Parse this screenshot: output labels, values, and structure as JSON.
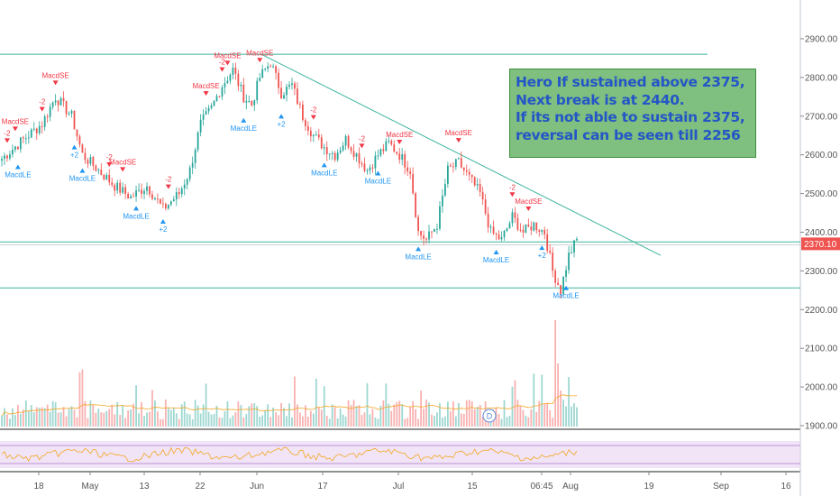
{
  "annotation": {
    "lines": [
      "Hero If sustained above 2375,",
      "Next break is at 2440.",
      "If its not able to sustain 2375,",
      "reversal can be seen till 2256"
    ]
  },
  "colors": {
    "up": "#26a69a",
    "down": "#ef5350",
    "signal_buy": "#2196f3",
    "signal_sell": "#f23645",
    "trendline": "#3fb59f",
    "annotation_bg": "#7fbf7f",
    "annotation_text": "#2456c7",
    "price_label_bg": "#ef5350",
    "volume_ma": "#f5a623",
    "oscillator": "#f5a623",
    "oscillator_band": "#e6d2f0"
  },
  "chart_data": {
    "type": "candlestick",
    "y_axis": {
      "ticks": [
        "2900.00",
        "2800.00",
        "2700.00",
        "2600.00",
        "2500.00",
        "2400.00",
        "2300.00",
        "2200.00",
        "2100.00",
        "2000.00",
        "1900.00"
      ],
      "current_price_label": "2370.10",
      "range": [
        1885,
        2960
      ]
    },
    "x_axis": {
      "ticks": [
        "18",
        "May",
        "13",
        "22",
        "Jun",
        "17",
        "Jul",
        "15",
        "06:45",
        "Aug",
        "19",
        "Sep",
        "16"
      ]
    },
    "horizontal_levels": [
      2860,
      2375,
      2256
    ],
    "trendline": {
      "from": {
        "x": "Jun",
        "y": 2860
      },
      "to": {
        "x": "Aug 13",
        "y": 2340
      }
    },
    "price_waypoints": [
      [
        0,
        2590
      ],
      [
        8,
        2640
      ],
      [
        15,
        2680
      ],
      [
        20,
        2750
      ],
      [
        26,
        2700
      ],
      [
        30,
        2600
      ],
      [
        36,
        2560
      ],
      [
        42,
        2520
      ],
      [
        48,
        2490
      ],
      [
        54,
        2520
      ],
      [
        60,
        2460
      ],
      [
        66,
        2500
      ],
      [
        70,
        2560
      ],
      [
        74,
        2680
      ],
      [
        78,
        2720
      ],
      [
        82,
        2780
      ],
      [
        86,
        2820
      ],
      [
        90,
        2750
      ],
      [
        93,
        2730
      ],
      [
        96,
        2800
      ],
      [
        100,
        2840
      ],
      [
        104,
        2760
      ],
      [
        108,
        2780
      ],
      [
        112,
        2700
      ],
      [
        116,
        2650
      ],
      [
        120,
        2620
      ],
      [
        124,
        2600
      ],
      [
        128,
        2640
      ],
      [
        132,
        2600
      ],
      [
        136,
        2560
      ],
      [
        140,
        2600
      ],
      [
        144,
        2630
      ],
      [
        148,
        2600
      ],
      [
        152,
        2560
      ],
      [
        155,
        2400
      ],
      [
        158,
        2380
      ],
      [
        162,
        2420
      ],
      [
        166,
        2560
      ],
      [
        170,
        2580
      ],
      [
        174,
        2540
      ],
      [
        178,
        2500
      ],
      [
        182,
        2400
      ],
      [
        186,
        2380
      ],
      [
        190,
        2440
      ],
      [
        194,
        2400
      ],
      [
        198,
        2420
      ],
      [
        202,
        2400
      ],
      [
        205,
        2300
      ],
      [
        208,
        2250
      ],
      [
        211,
        2340
      ],
      [
        214,
        2380
      ]
    ],
    "signals": [
      {
        "i": 2,
        "type": "sell",
        "label": "-2"
      },
      {
        "i": 5,
        "type": "sell",
        "label": "MacdSE"
      },
      {
        "i": 6,
        "type": "buy",
        "label": "MacdLE"
      },
      {
        "i": 15,
        "type": "sell",
        "label": "-2"
      },
      {
        "i": 20,
        "type": "sell",
        "label": "MacdSE"
      },
      {
        "i": 27,
        "type": "buy",
        "label": "+2"
      },
      {
        "i": 30,
        "type": "buy",
        "label": "MacdLE"
      },
      {
        "i": 40,
        "type": "sell",
        "label": "-2"
      },
      {
        "i": 45,
        "type": "sell",
        "label": "MacdSE"
      },
      {
        "i": 50,
        "type": "buy",
        "label": "MacdLE"
      },
      {
        "i": 60,
        "type": "buy",
        "label": "+2"
      },
      {
        "i": 62,
        "type": "sell",
        "label": "-2"
      },
      {
        "i": 76,
        "type": "sell",
        "label": "MacdSE"
      },
      {
        "i": 82,
        "type": "sell",
        "label": "-2"
      },
      {
        "i": 84,
        "type": "sell",
        "label": "MacdSE"
      },
      {
        "i": 90,
        "type": "buy",
        "label": "MacdLE"
      },
      {
        "i": 96,
        "type": "sell",
        "label": "MacdSE"
      },
      {
        "i": 104,
        "type": "buy",
        "label": "+2"
      },
      {
        "i": 116,
        "type": "sell",
        "label": "-2"
      },
      {
        "i": 120,
        "type": "buy",
        "label": "MacdLE"
      },
      {
        "i": 134,
        "type": "sell",
        "label": "-2"
      },
      {
        "i": 140,
        "type": "buy",
        "label": "MacdLE"
      },
      {
        "i": 148,
        "type": "sell",
        "label": "MacdSE"
      },
      {
        "i": 155,
        "type": "buy",
        "label": "MacdLE"
      },
      {
        "i": 170,
        "type": "sell",
        "label": "MacdSE"
      },
      {
        "i": 184,
        "type": "buy",
        "label": "MacdLE"
      },
      {
        "i": 190,
        "type": "sell",
        "label": "-2"
      },
      {
        "i": 196,
        "type": "sell",
        "label": "MacdSE"
      },
      {
        "i": 201,
        "type": "buy",
        "label": "+2"
      },
      {
        "i": 210,
        "type": "buy",
        "label": "MacdLE"
      }
    ],
    "event_marker": "D",
    "legend": "none",
    "grid": false
  }
}
